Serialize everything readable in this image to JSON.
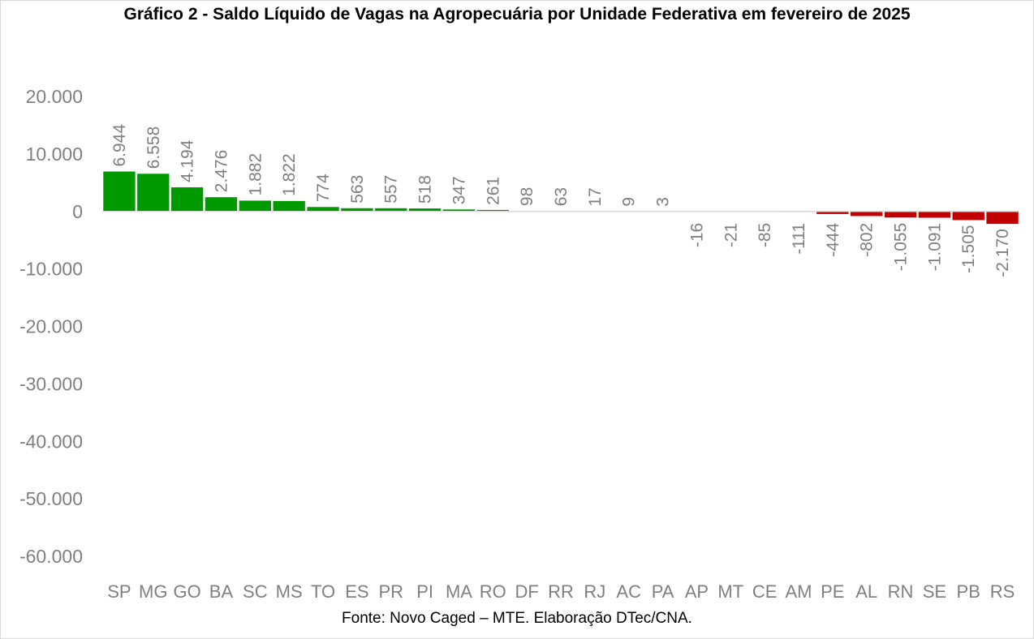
{
  "title": "Gráfico 2 - Saldo Líquido de Vagas na Agropecuária por Unidade Federativa em fevereiro de 2025",
  "source": "Fonte: Novo Caged – MTE. Elaboração DTec/CNA.",
  "colors": {
    "positive": "#009900",
    "negative": "#c00000",
    "text": "#7f7f7f",
    "axis": "#d9d9d9"
  },
  "chart_data": {
    "type": "bar",
    "categories": [
      "SP",
      "MG",
      "GO",
      "BA",
      "SC",
      "MS",
      "TO",
      "ES",
      "PR",
      "PI",
      "MA",
      "RO",
      "DF",
      "RR",
      "RJ",
      "AC",
      "PA",
      "AP",
      "MT",
      "CE",
      "AM",
      "PE",
      "AL",
      "RN",
      "SE",
      "PB",
      "RS"
    ],
    "values": [
      6944,
      6558,
      4194,
      2476,
      1882,
      1822,
      774,
      563,
      557,
      518,
      347,
      261,
      98,
      63,
      17,
      9,
      3,
      -16,
      -21,
      -85,
      -111,
      -444,
      -802,
      -1055,
      -1091,
      -1505,
      -2170
    ],
    "value_labels": [
      "6.944",
      "6.558",
      "4.194",
      "2.476",
      "1.882",
      "1.822",
      "774",
      "563",
      "557",
      "518",
      "347",
      "261",
      "98",
      "63",
      "17",
      "9",
      "3",
      "-16",
      "-21",
      "-85",
      "-111",
      "-444",
      "-802",
      "-1.055",
      "-1.091",
      "-1.505",
      "-2.170"
    ],
    "y_ticks": [
      20000,
      10000,
      0,
      -10000,
      -20000,
      -30000,
      -40000,
      -50000,
      -60000
    ],
    "y_tick_labels": [
      "20.000",
      "10.000",
      "0",
      "-10.000",
      "-20.000",
      "-30.000",
      "-40.000",
      "-50.000",
      "-60.000"
    ],
    "ylim": [
      -60000,
      20000
    ],
    "grid": false,
    "legend": "none",
    "xlabel": "",
    "ylabel": ""
  }
}
